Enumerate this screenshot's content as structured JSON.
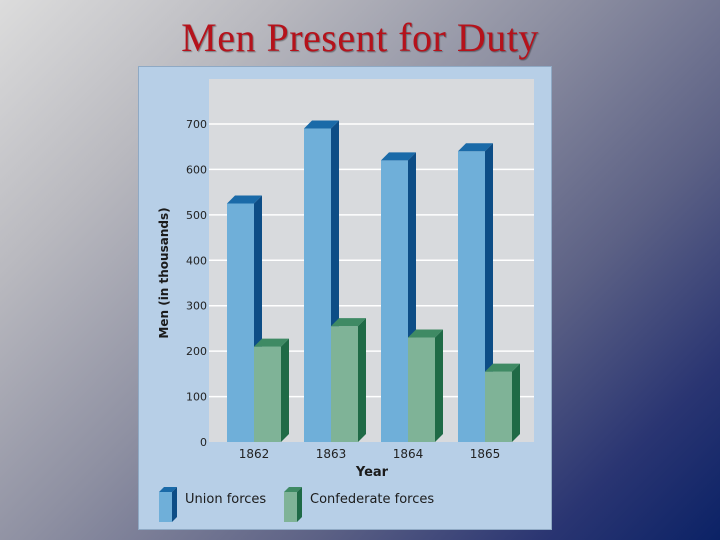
{
  "slide": {
    "title": "Men Present for Duty"
  },
  "colors": {
    "title": "#b5121b",
    "panel": "#b7cfe7",
    "plot_area": "#d8dadd",
    "union_front": "#6fafd9",
    "union_top": "#1a6aa8",
    "union_side": "#0d4d86",
    "confederate_front": "#7fb397",
    "confederate_top": "#3f8a64",
    "confederate_side": "#1f6a46"
  },
  "chart_data": {
    "type": "bar",
    "title": "",
    "xlabel": "Year",
    "ylabel": "Men (in thousands)",
    "categories": [
      "1862",
      "1863",
      "1864",
      "1865"
    ],
    "series": [
      {
        "name": "Union forces",
        "values": [
          525,
          690,
          620,
          640
        ]
      },
      {
        "name": "Confederate forces",
        "values": [
          210,
          255,
          230,
          155
        ]
      }
    ],
    "ylim": [
      0,
      700
    ],
    "yticks": [
      "0",
      "100",
      "200",
      "300",
      "400",
      "500",
      "600",
      "700"
    ],
    "grid": true,
    "legend_position": "bottom-left",
    "style": "3d-bars"
  }
}
